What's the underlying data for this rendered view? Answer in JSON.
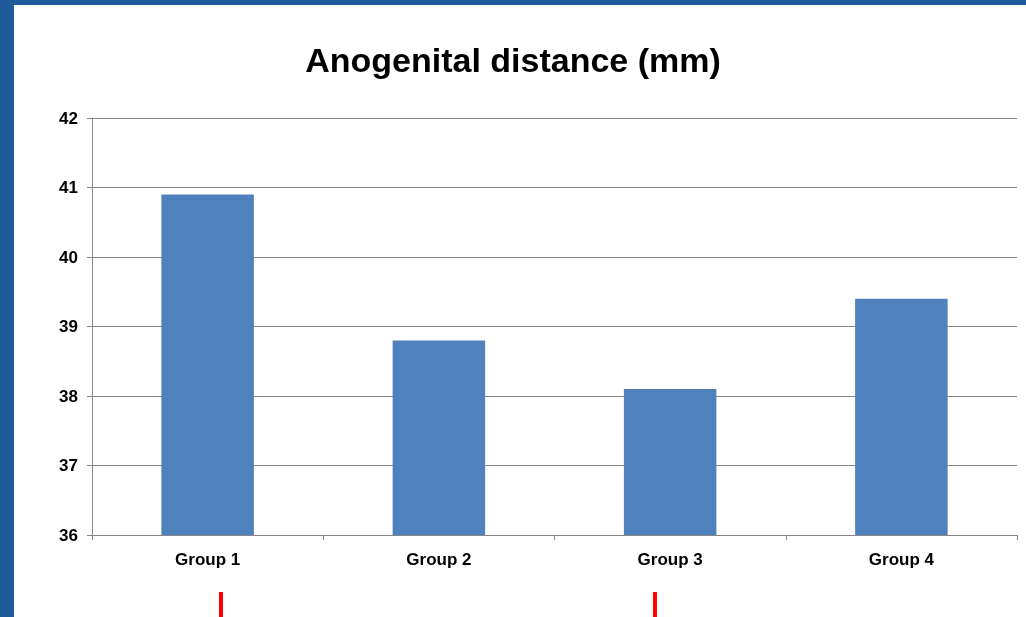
{
  "chart_data": {
    "type": "bar",
    "title": "Anogenital distance (mm)",
    "categories": [
      "Group 1",
      "Group 2",
      "Group 3",
      "Group 4"
    ],
    "values": [
      40.9,
      38.8,
      38.1,
      39.4
    ],
    "color": "#4f81bd",
    "ylim": [
      36,
      42
    ],
    "yticks": [
      36,
      37,
      38,
      39,
      40,
      41,
      42
    ],
    "grid": "y"
  }
}
